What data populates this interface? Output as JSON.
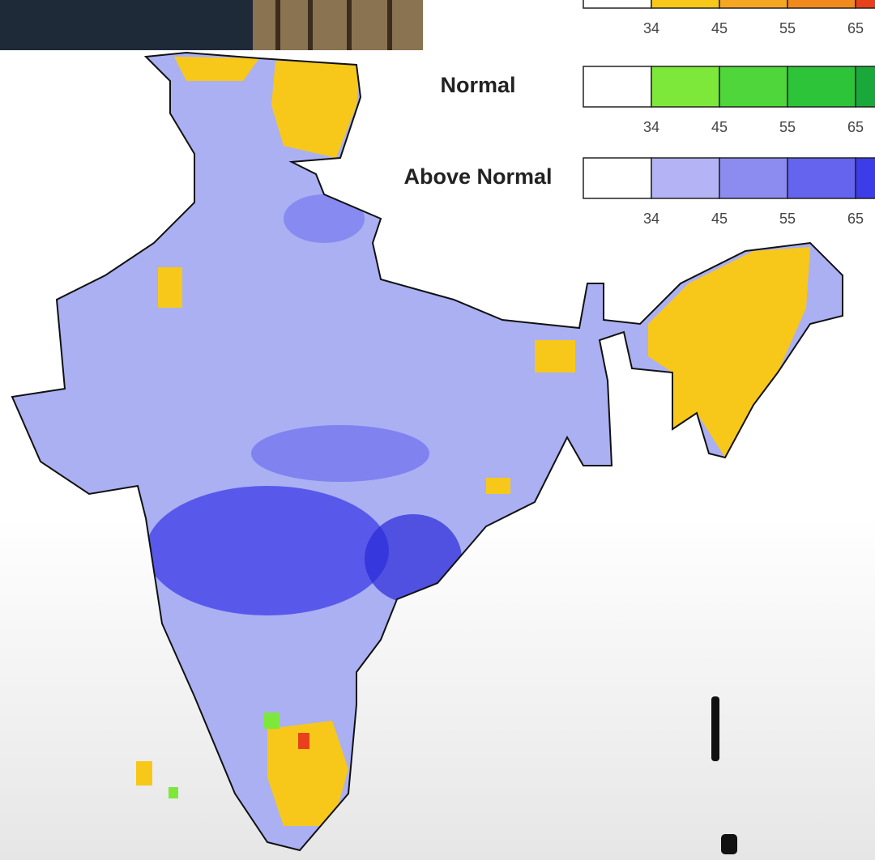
{
  "legend": {
    "rows": [
      {
        "colors": [
          "#ffffff",
          "#f7c81a",
          "#f5a623",
          "#f08a1c",
          "#e8401a"
        ],
        "ticks": [
          34,
          45,
          55,
          65
        ]
      },
      {
        "label": "Normal",
        "colors": [
          "#ffffff",
          "#7ee83a",
          "#4fd63a",
          "#2ec43a",
          "#1aa83a"
        ],
        "ticks": [
          34,
          45,
          55,
          65
        ]
      },
      {
        "label": "Above Normal",
        "colors": [
          "#ffffff",
          "#b3b3f5",
          "#8c8cf0",
          "#6464ee",
          "#3c3ce8"
        ],
        "ticks": [
          34,
          45,
          55,
          65
        ]
      }
    ]
  }
}
